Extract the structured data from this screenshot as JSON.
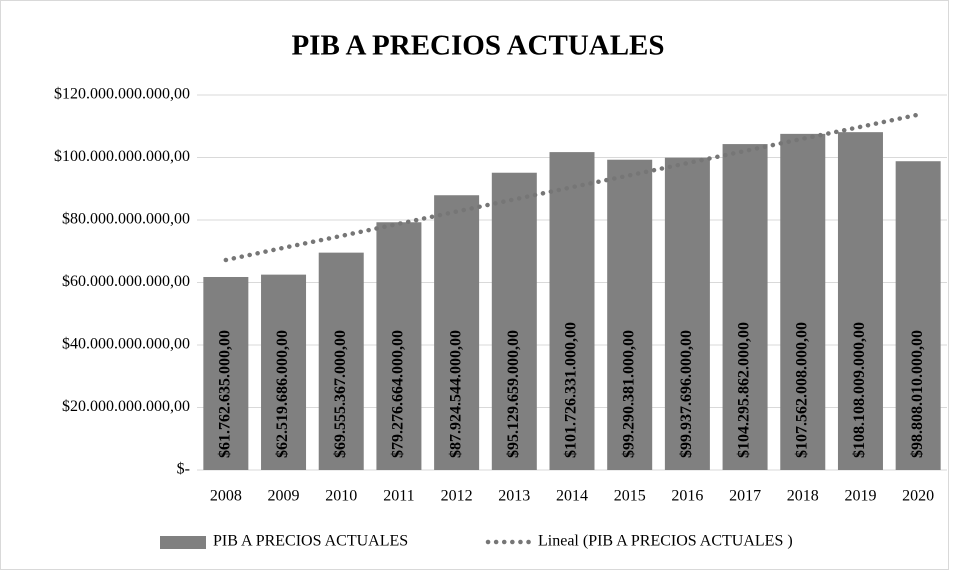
{
  "chart_data": {
    "type": "bar",
    "title": "PIB A PRECIOS ACTUALES",
    "categories": [
      "2008",
      "2009",
      "2010",
      "2011",
      "2012",
      "2013",
      "2014",
      "2015",
      "2016",
      "2017",
      "2018",
      "2019",
      "2020"
    ],
    "series": [
      {
        "name": "PIB A PRECIOS ACTUALES",
        "type": "bar",
        "color": "#808080",
        "values": [
          61762635000,
          62519686000,
          69555367000,
          79276664000,
          87924544000,
          95129659000,
          101726331000,
          99290381000,
          99937696000,
          104295862000,
          107562008000,
          108108009000,
          98808010000
        ],
        "value_labels": [
          "$61.762.635.000,00",
          "$62.519.686.000,00",
          "$69.555.367.000,00",
          "$79.276.664.000,00",
          "$87.924.544.000,00",
          "$95.129.659.000,00",
          "$101.726.331.000,00",
          "$99.290.381.000,00",
          "$99.937.696.000,00",
          "$104.295.862.000,00",
          "$107.562.008.000,00",
          "$108.108.009.000,00",
          "$98.808.010.000,00"
        ]
      },
      {
        "name": "Lineal (PIB A PRECIOS ACTUALES )",
        "type": "line",
        "style": "dotted",
        "color": "#767676",
        "values": [
          67200000000,
          71100000000,
          74900000000,
          78800000000,
          82700000000,
          86600000000,
          90500000000,
          94300000000,
          98200000000,
          102100000000,
          106000000000,
          109800000000,
          113700000000
        ]
      }
    ],
    "ylim": [
      0,
      120000000000
    ],
    "yticks": [
      {
        "value": 0,
        "label": "$-"
      },
      {
        "value": 20000000000,
        "label": "$20.000.000.000,00"
      },
      {
        "value": 40000000000,
        "label": "$40.000.000.000,00"
      },
      {
        "value": 60000000000,
        "label": "$60.000.000.000,00"
      },
      {
        "value": 80000000000,
        "label": "$80.000.000.000,00"
      },
      {
        "value": 100000000000,
        "label": "$100.000.000.000,00"
      },
      {
        "value": 120000000000,
        "label": "$120.000.000.000,00"
      }
    ],
    "grid": true,
    "legend": "bottom"
  }
}
